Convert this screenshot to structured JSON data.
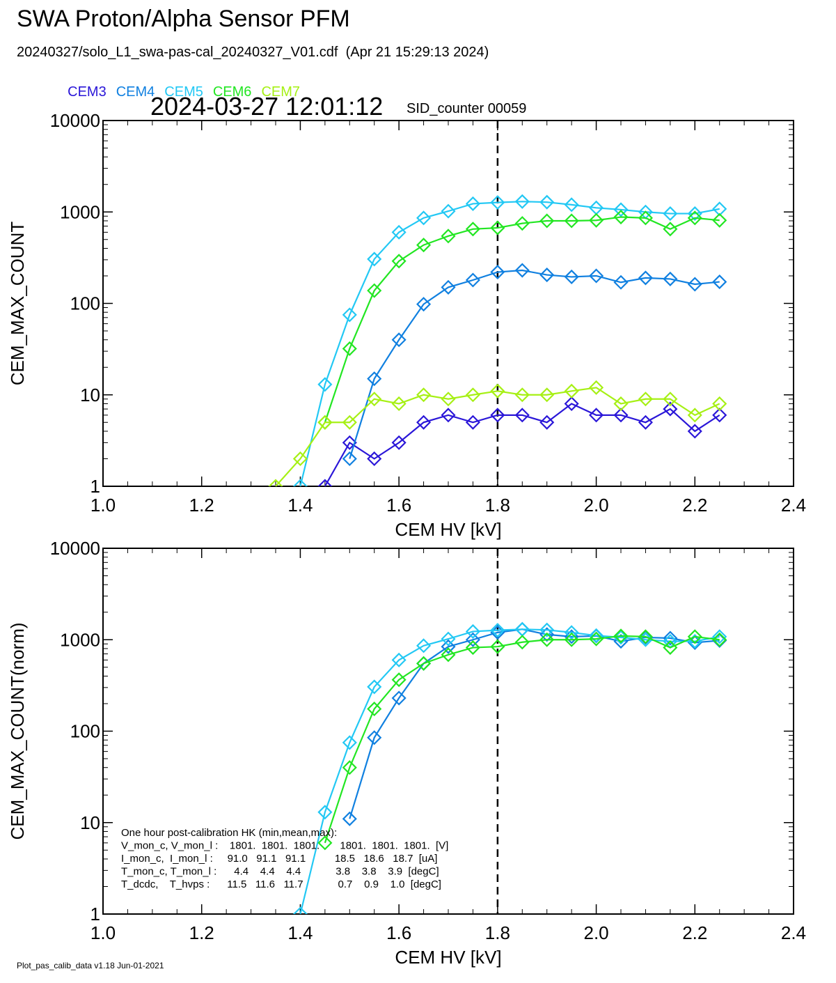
{
  "header": {
    "title": "SWA Proton/Alpha Sensor PFM",
    "file_line": "20240327/solo_L1_swa-pas-cal_20240327_V01.cdf  (Apr 21 15:29:13 2024)",
    "timestamp": "2024-03-27 12:01:12",
    "sid_counter": "SID_counter 00059"
  },
  "legend": [
    {
      "name": "CEM3",
      "color": "#2a16d8"
    },
    {
      "name": "CEM4",
      "color": "#1080e0"
    },
    {
      "name": "CEM5",
      "color": "#22c8f4"
    },
    {
      "name": "CEM6",
      "color": "#22e622"
    },
    {
      "name": "CEM7",
      "color": "#a6f014"
    }
  ],
  "footer": "Plot_pas_calib_data v1.18 Jun-01-2021",
  "hk_box": {
    "lines": [
      "One hour post-calibration HK (min,mean,max):",
      "V_mon_c, V_mon_l :    1801.  1801.  1801.       1801.  1801.  1801.  [V]",
      "I_mon_c,  I_mon_l :     91.0   91.1   91.1          18.5   18.6   18.7  [uA]",
      "T_mon_c, T_mon_l :      4.4    4.4    4.4            3.8    3.8    3.9  [degC]",
      "T_dcdc,    T_hvps :      11.5   11.6   11.7            0.7    0.9    1.0  [degC]"
    ]
  },
  "chart_data": [
    {
      "type": "line",
      "title": "",
      "xlabel": "CEM HV [kV]",
      "ylabel": "CEM_MAX_COUNT",
      "xlim": [
        1.0,
        2.4
      ],
      "ylim": [
        1,
        10000
      ],
      "yscale": "log",
      "xticks": [
        "1.0",
        "1.2",
        "1.4",
        "1.6",
        "1.8",
        "2.0",
        "2.2",
        "2.4"
      ],
      "yticks": [
        "1",
        "10",
        "100",
        "1000",
        "10000"
      ],
      "marker": "diamond",
      "vline": 1.8,
      "x": [
        1.35,
        1.4,
        1.45,
        1.5,
        1.55,
        1.6,
        1.65,
        1.7,
        1.75,
        1.8,
        1.85,
        1.9,
        1.95,
        2.0,
        2.05,
        2.1,
        2.15,
        2.2,
        2.25
      ],
      "series": [
        {
          "name": "CEM3",
          "color": "#2a16d8",
          "values": [
            null,
            null,
            1,
            3,
            2,
            3,
            5,
            6,
            5,
            6,
            6,
            5,
            8,
            6,
            6,
            5,
            7,
            4,
            6
          ]
        },
        {
          "name": "CEM4",
          "color": "#1080e0",
          "values": [
            null,
            null,
            null,
            2,
            15,
            40,
            98,
            150,
            180,
            220,
            230,
            205,
            195,
            200,
            170,
            190,
            185,
            162,
            172
          ]
        },
        {
          "name": "CEM5",
          "color": "#22c8f4",
          "values": [
            null,
            1,
            13,
            75,
            305,
            600,
            860,
            1020,
            1230,
            1270,
            1300,
            1280,
            1200,
            1110,
            1060,
            1000,
            960,
            960,
            1080
          ]
        },
        {
          "name": "CEM6",
          "color": "#22e622",
          "values": [
            null,
            null,
            5,
            32,
            138,
            290,
            435,
            545,
            650,
            670,
            750,
            800,
            800,
            810,
            880,
            860,
            650,
            860,
            810
          ]
        },
        {
          "name": "CEM7",
          "color": "#a6f014",
          "values": [
            1,
            2,
            5,
            5,
            9,
            8,
            10,
            9,
            10,
            11,
            10,
            10,
            11,
            12,
            8,
            9,
            9,
            6,
            8
          ]
        }
      ]
    },
    {
      "type": "line",
      "title": "",
      "xlabel": "CEM HV [kV]",
      "ylabel": "CEM_MAX_COUNT(norm)",
      "xlim": [
        1.0,
        2.4
      ],
      "ylim": [
        1,
        10000
      ],
      "yscale": "log",
      "xticks": [
        "1.0",
        "1.2",
        "1.4",
        "1.6",
        "1.8",
        "2.0",
        "2.2",
        "2.4"
      ],
      "yticks": [
        "1",
        "10",
        "100",
        "1000",
        "10000"
      ],
      "marker": "diamond",
      "vline": 1.8,
      "x": [
        1.35,
        1.4,
        1.45,
        1.5,
        1.55,
        1.6,
        1.65,
        1.7,
        1.75,
        1.8,
        1.85,
        1.9,
        1.95,
        2.0,
        2.05,
        2.1,
        2.15,
        2.2,
        2.25
      ],
      "series": [
        {
          "name": "CEM4",
          "color": "#1080e0",
          "values": [
            null,
            null,
            null,
            11,
            85,
            230,
            550,
            840,
            1000,
            1200,
            1300,
            1140,
            1080,
            1100,
            960,
            1060,
            1040,
            930,
            980
          ]
        },
        {
          "name": "CEM5",
          "color": "#22c8f4",
          "values": [
            null,
            1,
            13,
            75,
            305,
            600,
            860,
            1020,
            1230,
            1270,
            1300,
            1280,
            1200,
            1110,
            1060,
            1000,
            960,
            960,
            1080
          ]
        },
        {
          "name": "CEM6",
          "color": "#22e622",
          "values": [
            null,
            null,
            6,
            40,
            175,
            365,
            550,
            685,
            820,
            840,
            940,
            1000,
            1000,
            1020,
            1100,
            1080,
            820,
            1080,
            1000
          ]
        }
      ]
    }
  ]
}
